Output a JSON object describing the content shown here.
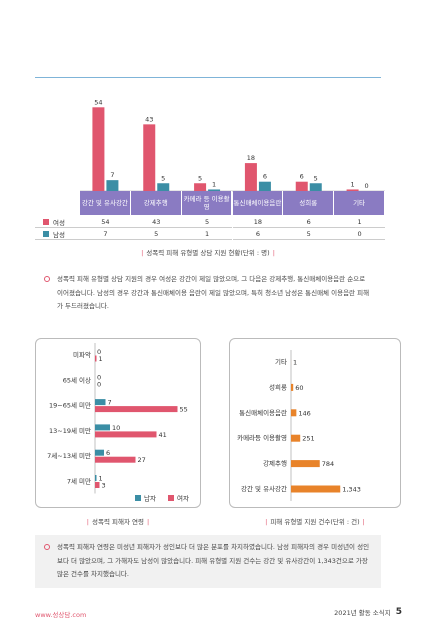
{
  "chart_data": [
    {
      "type": "bar",
      "caption": "성폭력 피해 유형별 상담 지원 현황(단위 : 명)",
      "categories": [
        "강간 및 유사강간",
        "강제추행",
        "카메라 등 이용촬영",
        "통신매체이용음란",
        "성희롱",
        "기타"
      ],
      "series": [
        {
          "name": "여성",
          "color": "#e0566e",
          "values": [
            54,
            43,
            5,
            18,
            6,
            1
          ]
        },
        {
          "name": "남성",
          "color": "#3b8ea5",
          "values": [
            7,
            5,
            1,
            6,
            5,
            0
          ]
        }
      ],
      "ylim": [
        0,
        60
      ]
    },
    {
      "type": "barh",
      "caption": "성폭력 피해자 연령",
      "categories": [
        "미파악",
        "65세 이상",
        "19~65세 미만",
        "13~19세 미만",
        "7세~13세 미만",
        "7세 미만"
      ],
      "series": [
        {
          "name": "남자",
          "color": "#3b8ea5",
          "values": [
            0,
            0,
            7,
            10,
            6,
            1
          ]
        },
        {
          "name": "여자",
          "color": "#e0566e",
          "values": [
            1,
            0,
            55,
            41,
            27,
            3
          ]
        }
      ],
      "xlim": [
        0,
        60
      ]
    },
    {
      "type": "barh",
      "caption": "피해 유형별 지원 건수(단위 : 건)",
      "categories": [
        "기타",
        "성희롱",
        "통신매체이용음란",
        "카메라등 이용촬영",
        "강제추행",
        "강간 및 유사강간"
      ],
      "values": [
        1,
        60,
        146,
        251,
        784,
        1343
      ],
      "value_labels": [
        "1",
        "60",
        "146",
        "251",
        "784",
        "1,343"
      ],
      "color": "#e8832a",
      "xlim": [
        0,
        1500
      ]
    }
  ],
  "notes": [
    "성폭력 피해 유형별 상담 지원의 경우 여성은 강간이 제일 많았으며, 그 다음은 강제추행, 통신매체이용음란 순으로 이어졌습니다. 남성의 경우 강간과 통신매체이용 음란이 제일 많았으며, 특히 청소년 남성은 통신매체 이용음란 피해가 두드러졌습니다.",
    "성폭력 피해자 연령은 미성년 피해자가 성인보다 더 많은 분포를 차지하였습니다. 남성 피해자의 경우 미성년이 성인보다 더 많았으며, 그 가해자도 남성이 많았습니다. 피해 유형별 지원 건수는 강간 및 유사강간이 1,343건으로 가장 많은 건수를 차지했습니다."
  ],
  "footer": {
    "site": "www.성상담.com",
    "publication": "2021년 활동 소식지",
    "page": "5"
  }
}
